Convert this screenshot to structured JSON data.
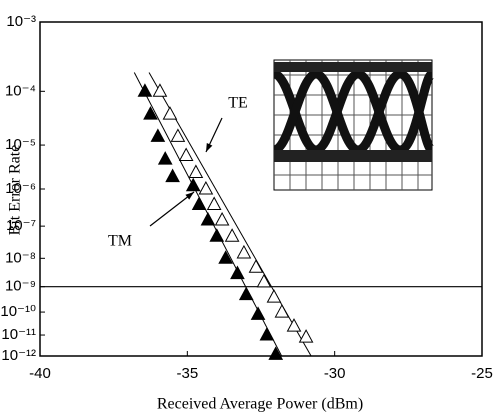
{
  "chart_data": {
    "type": "scatter",
    "x_label": "Received Average Power (dBm)",
    "y_label": "Bit Error Rate",
    "yscale": "log-log",
    "xlim": [
      -40,
      -25
    ],
    "xticks": [
      -40,
      -35,
      -30,
      -25
    ],
    "ylim": [
      0.001,
      1e-12
    ],
    "yticks": [
      {
        "value": 0.001,
        "label": "10⁻³"
      },
      {
        "value": 0.0001,
        "label": "10⁻⁴"
      },
      {
        "value": 1e-05,
        "label": "10⁻⁵"
      },
      {
        "value": 1e-06,
        "label": "10⁻⁶"
      },
      {
        "value": 1e-07,
        "label": "10⁻⁷"
      },
      {
        "value": 1e-08,
        "label": "10⁻⁸"
      },
      {
        "value": 1e-09,
        "label": "10⁻⁹"
      },
      {
        "value": 1e-10,
        "label": "10⁻¹⁰"
      },
      {
        "value": 1e-11,
        "label": "10⁻¹¹"
      },
      {
        "value": 1e-12,
        "label": "10⁻¹²"
      }
    ],
    "reference_line": 1e-09,
    "series": [
      {
        "name": "TE",
        "marker": "open-triangle",
        "color": "#000000",
        "x": [
          -35.93,
          -35.59,
          -35.32,
          -35.04,
          -34.71,
          -34.37,
          -34.09,
          -33.82,
          -33.48,
          -33.08,
          -32.67,
          -32.4,
          -32.06,
          -31.79,
          -31.38,
          -30.97
        ],
        "values": [
          0.0001,
          4e-05,
          1.5e-05,
          6e-06,
          2.5e-06,
          1e-06,
          4e-07,
          1.5e-07,
          5e-08,
          1.5e-08,
          5e-09,
          1.5e-09,
          4e-10,
          1e-10,
          2.5e-11,
          8e-12
        ],
        "fit": {
          "x": [
            -36.3,
            -30.8
          ],
          "values": [
            0.0002,
            1e-12
          ]
        }
      },
      {
        "name": "TM",
        "marker": "filled-triangle",
        "color": "#000000",
        "x": [
          -36.44,
          -36.25,
          -36.0,
          -35.75,
          -35.5,
          -34.8,
          -34.6,
          -34.3,
          -34.0,
          -33.7,
          -33.3,
          -33.0,
          -32.6,
          -32.3,
          -32.0
        ],
        "values": [
          0.0001,
          4e-05,
          1.5e-05,
          5e-06,
          2e-06,
          1.2e-06,
          4e-07,
          1.5e-07,
          5e-08,
          1e-08,
          3e-09,
          5e-10,
          8e-11,
          1e-11,
          1.2e-12
        ],
        "fit": {
          "x": [
            -36.8,
            -31.8
          ],
          "values": [
            0.0002,
            1e-12
          ]
        }
      }
    ]
  }
}
